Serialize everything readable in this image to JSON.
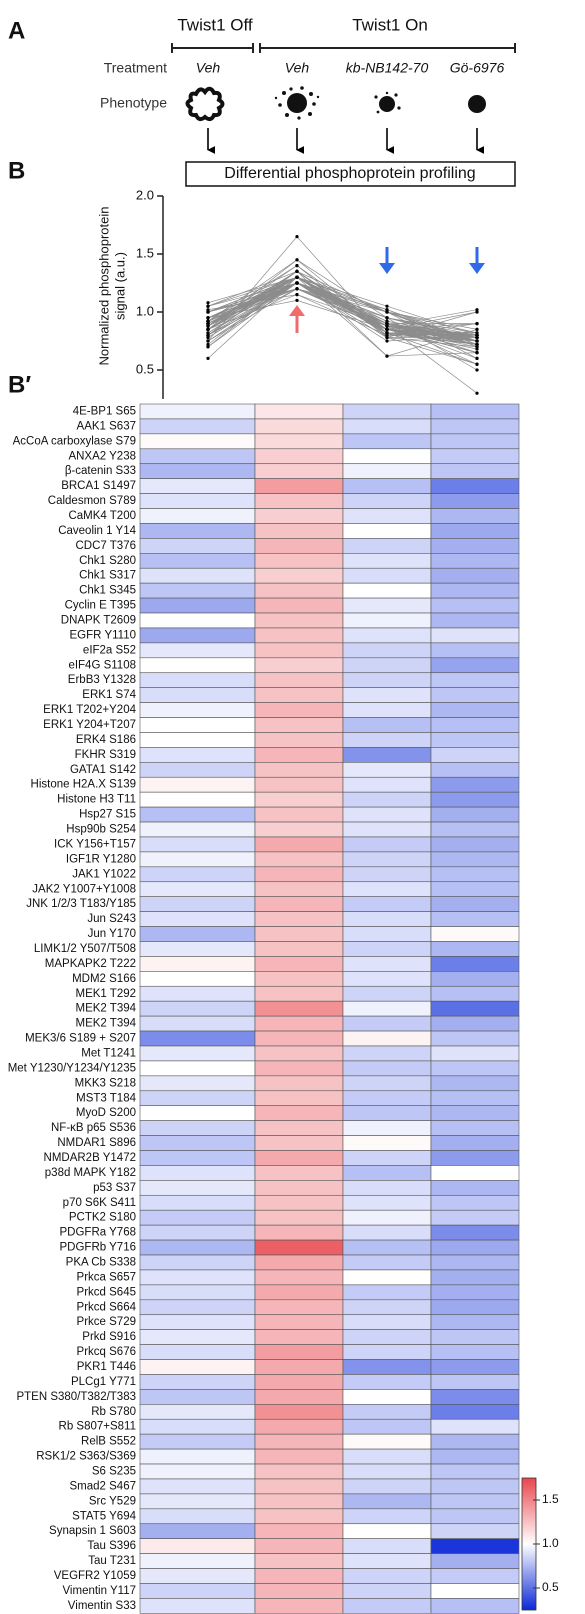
{
  "panel_labels": [
    "A",
    "B",
    "B′"
  ],
  "panel_a": {
    "groups": [
      "Twist1 Off",
      "Twist1 On"
    ],
    "row_labels": [
      "Treatment",
      "Phenotype"
    ],
    "treatments": [
      "Veh",
      "Veh",
      "kb-NB142-70",
      "Gö-6976"
    ],
    "method": "Differential phosphoprotein profiling"
  },
  "chart_data": [
    {
      "type": "line",
      "y_label": [
        "Normalized phosphoprotein",
        "signal (a.u.)"
      ],
      "ylim": [
        0.25,
        2.0
      ],
      "yticks": [
        0.5,
        {
          "value": 1,
          "label": "1.0"
        },
        1.5,
        {
          "value": 2,
          "label": "2.0"
        }
      ],
      "color": "#8c8c8c",
      "marker_color": "#000000"
    },
    {
      "type": "heatmap",
      "colorbar_lim": [
        0.25,
        1.75
      ],
      "colorbar_ticks": [
        0.5,
        {
          "value": 1,
          "label": "1.0"
        },
        1.5
      ],
      "colors": [
        "#0a28d8",
        "#ffffff",
        "#e8474d"
      ],
      "rows": [
        {
          "label": "4E-BP1 S65",
          "values": [
            0.95,
            1.1,
            0.85,
            0.78
          ]
        },
        {
          "label": "AAK1 S637",
          "values": [
            0.85,
            1.15,
            0.88,
            0.8
          ]
        },
        {
          "label": "AcCoA carboxylase S79",
          "values": [
            1.02,
            1.15,
            0.8,
            0.8
          ]
        },
        {
          "label": "ANXA2 Y238",
          "values": [
            0.8,
            1.2,
            1.0,
            0.82
          ]
        },
        {
          "label": "β-catenin S33",
          "values": [
            0.75,
            1.2,
            0.95,
            0.8
          ]
        },
        {
          "label": "BRCA1 S1497",
          "values": [
            0.92,
            1.4,
            0.78,
            0.55
          ]
        },
        {
          "label": "Caldesmon S789",
          "values": [
            0.9,
            1.25,
            0.85,
            0.65
          ]
        },
        {
          "label": "CaMK4 T200",
          "values": [
            0.95,
            1.2,
            0.9,
            0.75
          ]
        },
        {
          "label": "Caveolin 1 Y14",
          "values": [
            0.75,
            1.25,
            1.0,
            0.7
          ]
        },
        {
          "label": "CDC7 T376",
          "values": [
            0.85,
            1.3,
            0.85,
            0.72
          ]
        },
        {
          "label": "Chk1 S280",
          "values": [
            0.78,
            1.25,
            0.9,
            0.75
          ]
        },
        {
          "label": "Chk1 S317",
          "values": [
            0.9,
            1.2,
            0.88,
            0.72
          ]
        },
        {
          "label": "Chk1 S345",
          "values": [
            0.8,
            1.25,
            1.0,
            0.75
          ]
        },
        {
          "label": "Cyclin E T395",
          "values": [
            0.7,
            1.3,
            0.92,
            0.78
          ]
        },
        {
          "label": "DNAPK T2609",
          "values": [
            1.0,
            1.25,
            0.95,
            0.75
          ]
        },
        {
          "label": "EGFR Y1110",
          "values": [
            0.7,
            1.25,
            0.9,
            0.9
          ]
        },
        {
          "label": "eIF2a S52",
          "values": [
            0.92,
            1.25,
            0.85,
            0.78
          ]
        },
        {
          "label": "eIF4G S1108",
          "values": [
            1.0,
            1.2,
            0.85,
            0.68
          ]
        },
        {
          "label": "ErbB3 Y1328",
          "values": [
            0.88,
            1.25,
            0.85,
            0.8
          ]
        },
        {
          "label": "ERK1 S74",
          "values": [
            0.88,
            1.25,
            0.9,
            0.8
          ]
        },
        {
          "label": "ERK1 T202+Y204",
          "values": [
            0.95,
            1.3,
            0.9,
            0.75
          ]
        },
        {
          "label": "ERK1 Y204+T207",
          "values": [
            1.0,
            1.25,
            0.78,
            0.78
          ]
        },
        {
          "label": "ERK4 S186",
          "values": [
            1.0,
            1.25,
            0.85,
            0.8
          ]
        },
        {
          "label": "FKHR S319",
          "values": [
            0.9,
            1.3,
            0.62,
            0.85
          ]
        },
        {
          "label": "GATA1 S142",
          "values": [
            0.85,
            1.25,
            0.92,
            0.78
          ]
        },
        {
          "label": "Histone H2A.X S139",
          "values": [
            1.05,
            1.25,
            0.9,
            0.65
          ]
        },
        {
          "label": "Histone H3 T11",
          "values": [
            1.0,
            1.2,
            0.85,
            0.65
          ]
        },
        {
          "label": "Hsp27 S15",
          "values": [
            0.78,
            1.25,
            0.9,
            0.72
          ]
        },
        {
          "label": "Hsp90b S254",
          "values": [
            0.95,
            1.2,
            0.9,
            0.78
          ]
        },
        {
          "label": "ICK Y156+T157",
          "values": [
            0.88,
            1.35,
            0.82,
            0.72
          ]
        },
        {
          "label": "IGF1R Y1280",
          "values": [
            0.95,
            1.25,
            0.85,
            0.75
          ]
        },
        {
          "label": "JAK1 Y1022",
          "values": [
            0.85,
            1.3,
            0.85,
            0.78
          ]
        },
        {
          "label": "JAK2 Y1007+Y1008",
          "values": [
            0.92,
            1.25,
            0.9,
            0.78
          ]
        },
        {
          "label": "JNK 1/2/3 T183/Y185",
          "values": [
            0.85,
            1.3,
            0.82,
            0.72
          ]
        },
        {
          "label": "Jun S243",
          "values": [
            0.9,
            1.25,
            0.88,
            0.78
          ]
        },
        {
          "label": "Jun Y170",
          "values": [
            0.75,
            1.25,
            0.88,
            1.02
          ]
        },
        {
          "label": "LIMK1/2 Y507/T508",
          "values": [
            0.92,
            1.25,
            0.85,
            0.75
          ]
        },
        {
          "label": "MAPKAPK2 T222",
          "values": [
            1.05,
            1.3,
            0.9,
            0.55
          ]
        },
        {
          "label": "MDM2 S166",
          "values": [
            1.0,
            1.25,
            0.9,
            0.72
          ]
        },
        {
          "label": "MEK1 T292",
          "values": [
            0.9,
            1.25,
            0.85,
            0.78
          ]
        },
        {
          "label": "MEK2 T394",
          "values": [
            0.85,
            1.45,
            0.95,
            0.5
          ]
        },
        {
          "label": "MEK2 T394",
          "values": [
            0.88,
            1.3,
            0.82,
            0.72
          ]
        },
        {
          "label": "MEK3/6 S189 + S207",
          "values": [
            0.6,
            1.3,
            1.05,
            0.8
          ]
        },
        {
          "label": "Met T1241",
          "values": [
            0.92,
            1.25,
            0.85,
            0.9
          ]
        },
        {
          "label": "Met Y1230/Y1234/Y1235",
          "values": [
            1.0,
            1.3,
            0.82,
            0.8
          ]
        },
        {
          "label": "MKK3 S218",
          "values": [
            0.92,
            1.25,
            0.85,
            0.75
          ]
        },
        {
          "label": "MST3 T184",
          "values": [
            0.85,
            1.25,
            0.82,
            0.78
          ]
        },
        {
          "label": "MyoD S200",
          "values": [
            1.0,
            1.3,
            0.8,
            0.75
          ]
        },
        {
          "label": "NF-κB p65 S536",
          "values": [
            0.85,
            1.25,
            0.95,
            0.78
          ]
        },
        {
          "label": "NMDAR1 S896",
          "values": [
            0.8,
            1.25,
            1.02,
            0.72
          ]
        },
        {
          "label": "NMDAR2B Y1472",
          "values": [
            0.8,
            1.35,
            0.85,
            0.65
          ]
        },
        {
          "label": "p38d MAPK Y182",
          "values": [
            0.9,
            1.25,
            0.78,
            1.0
          ]
        },
        {
          "label": "p53 S37",
          "values": [
            0.92,
            1.25,
            0.88,
            0.75
          ]
        },
        {
          "label": "p70 S6K S411",
          "values": [
            0.88,
            1.25,
            0.9,
            0.8
          ]
        },
        {
          "label": "PCTK2 S180",
          "values": [
            0.82,
            1.25,
            0.95,
            0.82
          ]
        },
        {
          "label": "PDGFRa Y768",
          "values": [
            0.85,
            1.3,
            0.88,
            0.6
          ]
        },
        {
          "label": "PDGFRb Y716",
          "values": [
            0.75,
            1.65,
            0.78,
            0.7
          ]
        },
        {
          "label": "PKA Cb S338",
          "values": [
            0.85,
            1.35,
            0.82,
            0.75
          ]
        },
        {
          "label": "Prkca S657",
          "values": [
            0.9,
            1.3,
            1.0,
            0.72
          ]
        },
        {
          "label": "Prkcd S645",
          "values": [
            0.88,
            1.35,
            0.82,
            0.72
          ]
        },
        {
          "label": "Prkcd S664",
          "values": [
            0.85,
            1.3,
            0.85,
            0.7
          ]
        },
        {
          "label": "Prkce S729",
          "values": [
            0.9,
            1.3,
            0.88,
            0.75
          ]
        },
        {
          "label": "Prkd S916",
          "values": [
            0.92,
            1.3,
            0.85,
            0.8
          ]
        },
        {
          "label": "Prkcq S676",
          "values": [
            0.88,
            1.4,
            0.85,
            0.78
          ]
        },
        {
          "label": "PKR1 T446",
          "values": [
            1.05,
            1.35,
            0.62,
            0.65
          ]
        },
        {
          "label": "PLCg1 Y771",
          "values": [
            0.85,
            1.35,
            0.82,
            0.8
          ]
        },
        {
          "label": "PTEN S380/T382/T383",
          "values": [
            0.8,
            1.35,
            1.0,
            0.6
          ]
        },
        {
          "label": "Rb S780",
          "values": [
            0.92,
            1.45,
            0.82,
            0.55
          ]
        },
        {
          "label": "Rb S807+S811",
          "values": [
            0.88,
            1.35,
            0.8,
            0.9
          ]
        },
        {
          "label": "RelB S552",
          "values": [
            0.82,
            1.3,
            1.02,
            0.75
          ]
        },
        {
          "label": "RSK1/2 S363/S369",
          "values": [
            0.95,
            1.3,
            0.88,
            0.75
          ]
        },
        {
          "label": "S6 S235",
          "values": [
            0.95,
            1.25,
            0.88,
            0.8
          ]
        },
        {
          "label": "Smad2 S467",
          "values": [
            0.9,
            1.25,
            0.85,
            0.8
          ]
        },
        {
          "label": "Src Y529",
          "values": [
            0.92,
            1.25,
            0.75,
            0.8
          ]
        },
        {
          "label": "STAT5 Y694",
          "values": [
            0.88,
            1.25,
            0.85,
            0.8
          ]
        },
        {
          "label": "Synapsin 1 S603",
          "values": [
            0.72,
            1.3,
            1.0,
            0.85
          ]
        },
        {
          "label": "Tau S396",
          "values": [
            1.08,
            1.3,
            0.88,
            0.3
          ]
        },
        {
          "label": "Tau T231",
          "values": [
            0.95,
            1.25,
            0.9,
            0.72
          ]
        },
        {
          "label": "VEGFR2 Y1059",
          "values": [
            0.92,
            1.3,
            0.85,
            0.82
          ]
        },
        {
          "label": "Vimentin Y117",
          "values": [
            0.85,
            1.3,
            0.85,
            1.0
          ]
        },
        {
          "label": "Vimentin S33",
          "values": [
            0.9,
            1.3,
            0.82,
            0.78
          ]
        }
      ]
    }
  ]
}
